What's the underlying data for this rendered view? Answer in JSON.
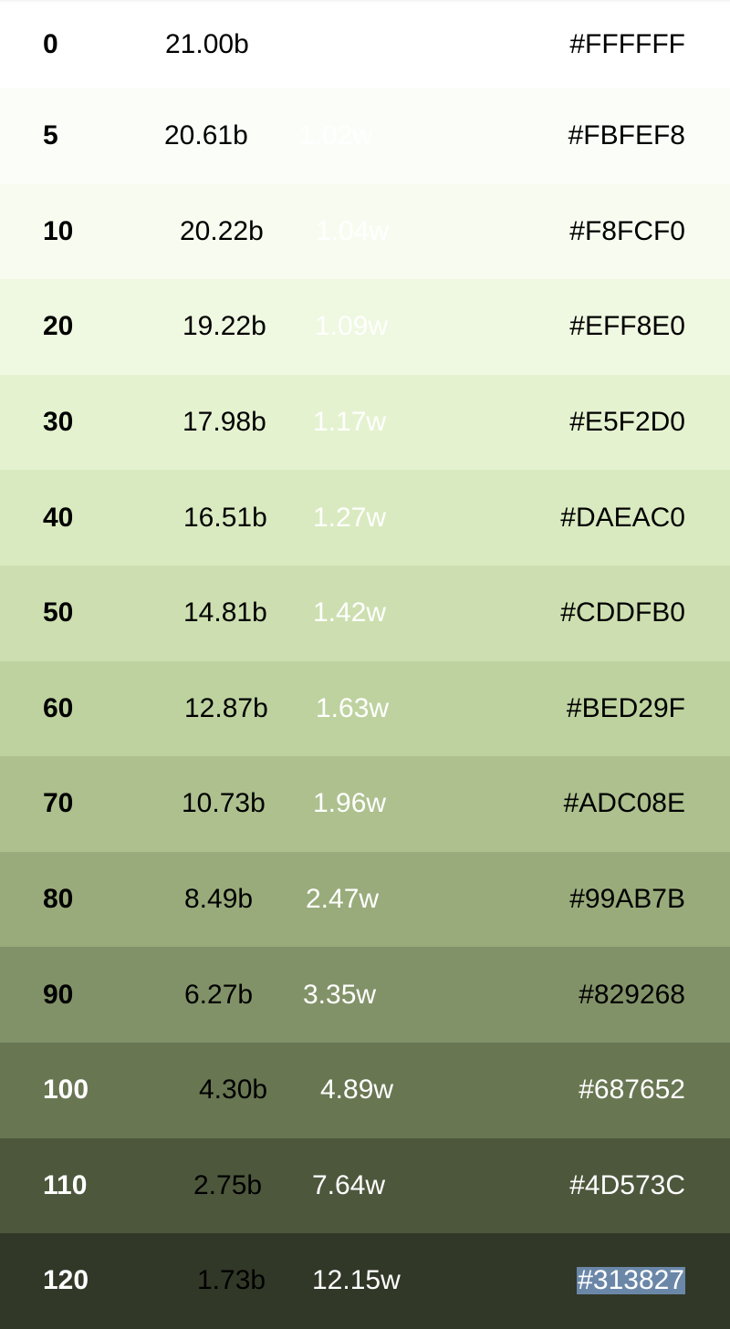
{
  "palette": {
    "rows": [
      {
        "tone": "0",
        "contrast_black": "21.00b",
        "contrast_white": "",
        "hex": "#FFFFFF",
        "bg": "#FFFFFF"
      },
      {
        "tone": "5",
        "contrast_black": "20.61b",
        "contrast_white": "1.02w",
        "hex": "#FBFEF8",
        "bg": "#FBFEF8"
      },
      {
        "tone": "10",
        "contrast_black": "20.22b",
        "contrast_white": "1.04w",
        "hex": "#F8FCF0",
        "bg": "#F8FCF0"
      },
      {
        "tone": "20",
        "contrast_black": "19.22b",
        "contrast_white": "1.09w",
        "hex": "#EFF8E0",
        "bg": "#EFF8E0"
      },
      {
        "tone": "30",
        "contrast_black": "17.98b",
        "contrast_white": "1.17w",
        "hex": "#E5F2D0",
        "bg": "#E5F2D0"
      },
      {
        "tone": "40",
        "contrast_black": "16.51b",
        "contrast_white": "1.27w",
        "hex": "#DAEAC0",
        "bg": "#DAEAC0"
      },
      {
        "tone": "50",
        "contrast_black": "14.81b",
        "contrast_white": "1.42w",
        "hex": "#CDDFB0",
        "bg": "#CDDFB0"
      },
      {
        "tone": "60",
        "contrast_black": "12.87b",
        "contrast_white": "1.63w",
        "hex": "#BED29F",
        "bg": "#BED29F"
      },
      {
        "tone": "70",
        "contrast_black": "10.73b",
        "contrast_white": "1.96w",
        "hex": "#ADC08E",
        "bg": "#ADC08E"
      },
      {
        "tone": "80",
        "contrast_black": "8.49b",
        "contrast_white": "2.47w",
        "hex": "#99AB7B",
        "bg": "#99AB7B"
      },
      {
        "tone": "90",
        "contrast_black": "6.27b",
        "contrast_white": "3.35w",
        "hex": "#829268",
        "bg": "#829268"
      },
      {
        "tone": "100",
        "contrast_black": "4.30b",
        "contrast_white": "4.89w",
        "hex": "#687652",
        "bg": "#687652"
      },
      {
        "tone": "110",
        "contrast_black": "2.75b",
        "contrast_white": "7.64w",
        "hex": "#4D573C",
        "bg": "#4D573C"
      },
      {
        "tone": "120",
        "contrast_black": "1.73b",
        "contrast_white": "12.15w",
        "hex": "#313827",
        "bg": "#313827"
      }
    ]
  }
}
